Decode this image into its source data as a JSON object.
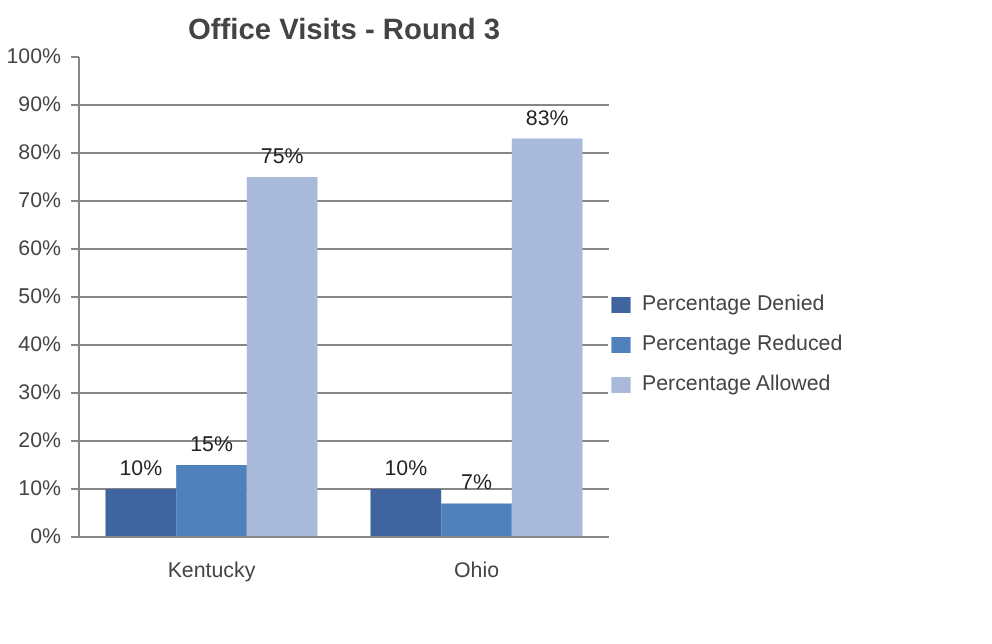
{
  "chart_data": {
    "type": "bar",
    "title": "Office Visits - Round 3",
    "categories": [
      "Kentucky",
      "Ohio"
    ],
    "series": [
      {
        "name": "Percentage Denied",
        "color": "#3f64a0",
        "values": [
          10,
          10
        ],
        "value_labels": [
          "10%",
          "10%"
        ]
      },
      {
        "name": "Percentage Reduced",
        "color": "#4f81bd",
        "values": [
          15,
          7
        ],
        "value_labels": [
          "15%",
          "7%"
        ]
      },
      {
        "name": "Percentage Allowed",
        "color": "#a8b9d9",
        "values": [
          75,
          83
        ],
        "value_labels": [
          "75%",
          "83%"
        ]
      }
    ],
    "ylim": [
      0,
      100
    ],
    "yticks": [
      {
        "value": 0,
        "label": "0%"
      },
      {
        "value": 10,
        "label": "10%"
      },
      {
        "value": 20,
        "label": "20%"
      },
      {
        "value": 30,
        "label": "30%"
      },
      {
        "value": 40,
        "label": "40%"
      },
      {
        "value": 50,
        "label": "50%"
      },
      {
        "value": 60,
        "label": "60%"
      },
      {
        "value": 70,
        "label": "70%"
      },
      {
        "value": 80,
        "label": "80%"
      },
      {
        "value": 90,
        "label": "90%"
      },
      {
        "value": 100,
        "label": "100%"
      }
    ],
    "grid": "y",
    "legend": "right"
  }
}
